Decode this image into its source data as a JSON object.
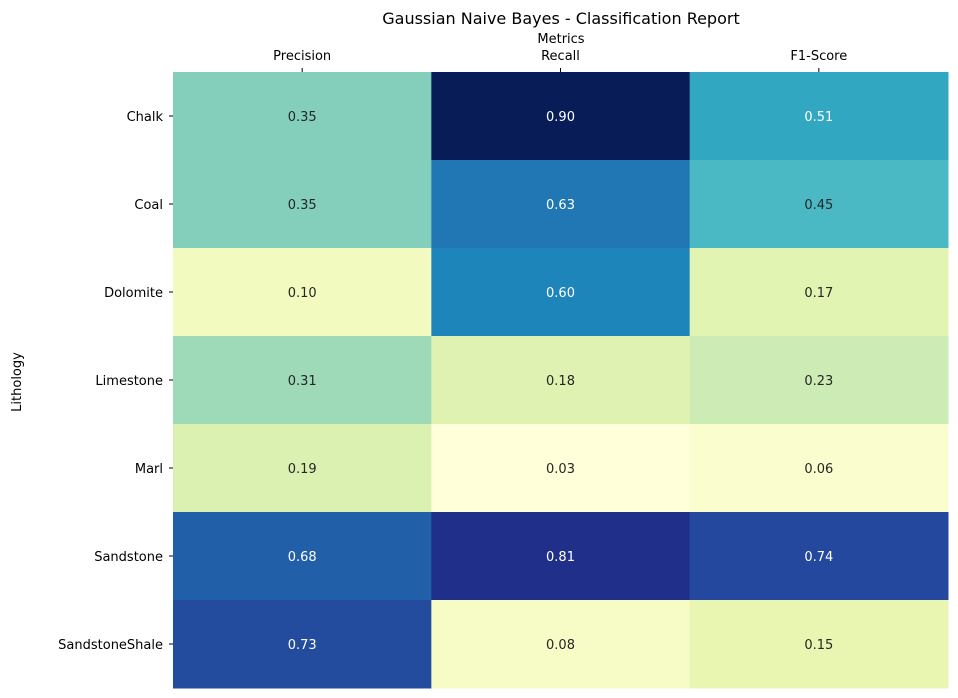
{
  "chart_data": {
    "type": "heatmap",
    "title": "Gaussian Naive Bayes - Classification Report",
    "xlabel": "Metrics",
    "ylabel": "Lithology",
    "x_axis_position": "top",
    "colormap": "YlGnBu",
    "colorbar": false,
    "columns": [
      "Precision",
      "Recall",
      "F1-Score"
    ],
    "rows": [
      "Chalk",
      "Coal",
      "Dolomite",
      "Limestone",
      "Marl",
      "Sandstone",
      "SandstoneShale"
    ],
    "values": [
      [
        0.35,
        0.9,
        0.51
      ],
      [
        0.35,
        0.63,
        0.45
      ],
      [
        0.1,
        0.6,
        0.17
      ],
      [
        0.31,
        0.18,
        0.23
      ],
      [
        0.19,
        0.03,
        0.06
      ],
      [
        0.68,
        0.81,
        0.74
      ],
      [
        0.73,
        0.08,
        0.15
      ]
    ],
    "vmin": 0.03,
    "vmax": 0.9
  }
}
